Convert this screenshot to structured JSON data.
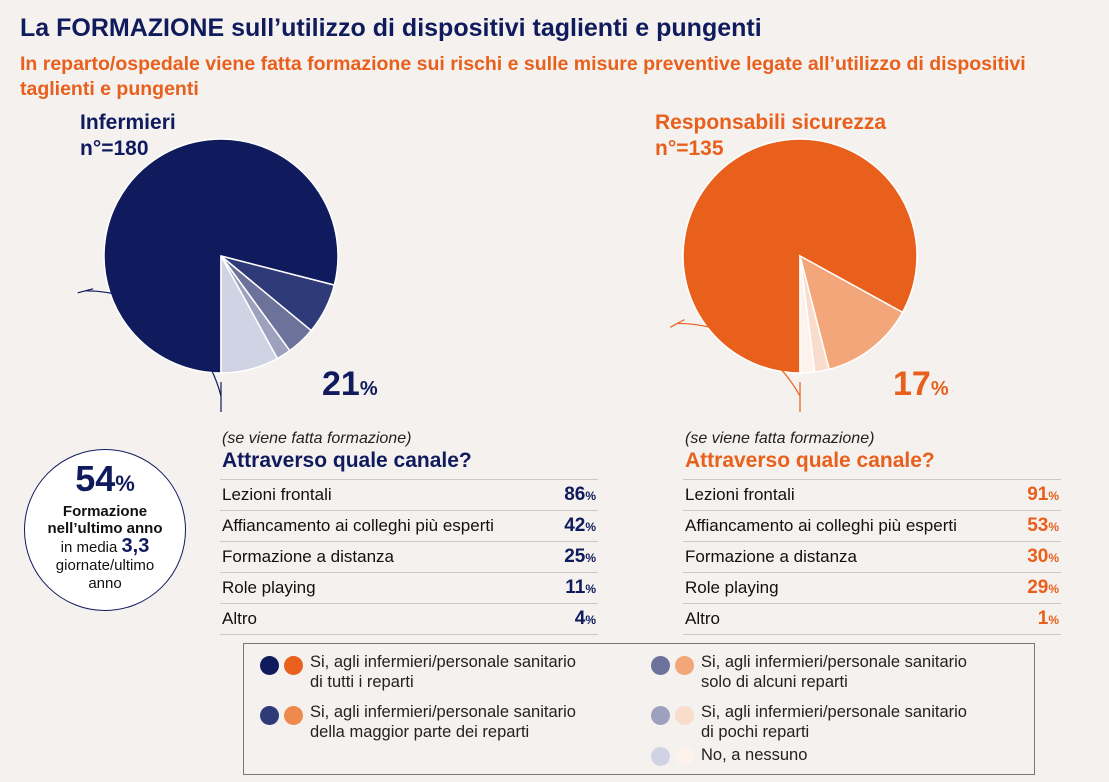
{
  "title": "La FORMAZIONE sull’utilizzo di dispositivi taglienti e pungenti",
  "subtitle": "In reparto/ospedale viene fatta formazione sui rischi e sulle misure preventive legate all’utilizzo di dispositivi taglienti e pungenti",
  "chart_data": [
    {
      "type": "pie",
      "name": "Infermieri",
      "n_label": "n°=180",
      "slices": [
        {
          "legend_index": 0,
          "value": 79
        },
        {
          "legend_index": 1,
          "value": 7
        },
        {
          "legend_index": 2,
          "value": 4
        },
        {
          "legend_index": 3,
          "value": 2
        },
        {
          "legend_index": 4,
          "value": 8
        }
      ],
      "callout_value": "21",
      "callout_unit": "%"
    },
    {
      "type": "pie",
      "name": "Responsabili sicurezza",
      "n_label": "n°=135",
      "slices": [
        {
          "legend_index": 0,
          "value": 83
        },
        {
          "legend_index": 1,
          "value": 0
        },
        {
          "legend_index": 2,
          "value": 13
        },
        {
          "legend_index": 3,
          "value": 2
        },
        {
          "legend_index": 4,
          "value": 2
        }
      ],
      "callout_value": "17",
      "callout_unit": "%"
    }
  ],
  "channels": {
    "if_text": "(se viene fatta formazione)",
    "question": "Attraverso quale canale?",
    "unit": "%",
    "rows": [
      {
        "label": "Lezioni frontali",
        "inf": "86",
        "rs": "91"
      },
      {
        "label": "Affiancamento ai colleghi più esperti",
        "inf": "42",
        "rs": "53"
      },
      {
        "label": "Formazione a distanza",
        "inf": "25",
        "rs": "30"
      },
      {
        "label": "Role playing",
        "inf": "11",
        "rs": "29"
      },
      {
        "label": "Altro",
        "inf": "4",
        "rs": "1"
      }
    ]
  },
  "highlight": {
    "pct": "54",
    "unit": "%",
    "label_line1": "Formazione",
    "label_line2": "nell’ultimo anno",
    "avg_prefix": "in media",
    "avg_value": "3,3",
    "avg_line2": "giornate/ultimo",
    "avg_line3": "anno"
  },
  "legend": [
    {
      "line1": "Si, agli infermieri/personale sanitario",
      "line2": "di tutti i reparti",
      "color_inf": "#0f1b5c",
      "color_rs": "#e8601c"
    },
    {
      "line1": "Si, agli infermieri/personale sanitario",
      "line2": "della maggior parte dei reparti",
      "color_inf": "#2f3a78",
      "color_rs": "#ef8a4f"
    },
    {
      "line1": "Si, agli infermieri/personale sanitario",
      "line2": "solo di alcuni reparti",
      "color_inf": "#6c7299",
      "color_rs": "#f3a679"
    },
    {
      "line1": "Si, agli infermieri/personale sanitario",
      "line2": "di pochi reparti",
      "color_inf": "#9da1bd",
      "color_rs": "#f9dccb"
    },
    {
      "line1": "No, a nessuno",
      "line2": "",
      "color_inf": "#d0d3e3",
      "color_rs": "#fdf2ec"
    }
  ]
}
